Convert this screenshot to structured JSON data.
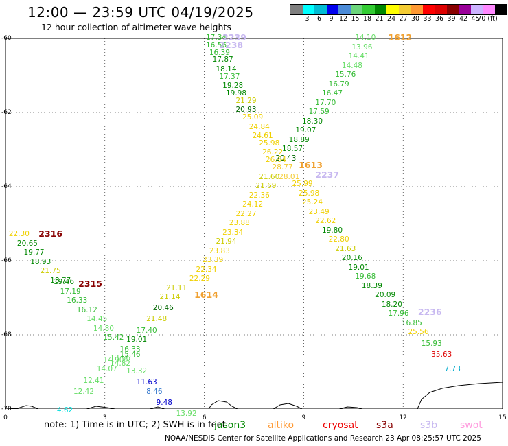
{
  "title": "12:00 — 23:59 UTC 04/19/2025",
  "subtitle": "12 hour collection of altimeter wave heights",
  "legend": {
    "colors": [
      "#7f7f7f",
      "#00ffff",
      "#00bcd4",
      "#0000ee",
      "#4b8bd8",
      "#6cd67c",
      "#33cc33",
      "#008800",
      "#ffff00",
      "#f4cc33",
      "#ff9933",
      "#ff0000",
      "#dd0000",
      "#880000",
      "#990099",
      "#ccb3ff",
      "#ff88ff",
      "#000000"
    ],
    "labels": [
      "3",
      "6",
      "9",
      "12",
      "15",
      "18",
      "21",
      "24",
      "27",
      "30",
      "33",
      "36",
      "39",
      "42",
      "45",
      "70 (ft)"
    ]
  },
  "axes": {
    "lat_labels": [
      "-60",
      "-62",
      "-64",
      "-66",
      "-68",
      "-70"
    ],
    "lon_labels": [
      "0",
      "3",
      "6",
      "9",
      "12",
      "15"
    ]
  },
  "points": [
    {
      "v": "17.34",
      "lon": 6.05,
      "lat": -60.0,
      "c": "#33bb33"
    },
    {
      "v": "16.56",
      "lon": 6.05,
      "lat": -60.2,
      "c": "#33bb33"
    },
    {
      "v": "16.39",
      "lon": 6.15,
      "lat": -60.4,
      "c": "#33bb33"
    },
    {
      "v": "17.87",
      "lon": 6.25,
      "lat": -60.6,
      "c": "#008800"
    },
    {
      "v": "18.14",
      "lon": 6.35,
      "lat": -60.85,
      "c": "#008800"
    },
    {
      "v": "17.37",
      "lon": 6.45,
      "lat": -61.05,
      "c": "#33bb33"
    },
    {
      "v": "19.28",
      "lon": 6.55,
      "lat": -61.3,
      "c": "#008800"
    },
    {
      "v": "19.98",
      "lon": 6.65,
      "lat": -61.5,
      "c": "#008800"
    },
    {
      "v": "21.29",
      "lon": 6.95,
      "lat": -61.7,
      "c": "#cccc00"
    },
    {
      "v": "20.93",
      "lon": 6.95,
      "lat": -61.95,
      "c": "#006600"
    },
    {
      "v": "25.09",
      "lon": 7.15,
      "lat": -62.15,
      "c": "#f0d000"
    },
    {
      "v": "24.84",
      "lon": 7.35,
      "lat": -62.4,
      "c": "#f0d000"
    },
    {
      "v": "24.61",
      "lon": 7.45,
      "lat": -62.65,
      "c": "#f0d000"
    },
    {
      "v": "25.98",
      "lon": 7.65,
      "lat": -62.85,
      "c": "#f0d000"
    },
    {
      "v": "26.22",
      "lon": 7.75,
      "lat": -63.1,
      "c": "#f0d000"
    },
    {
      "v": "26.64",
      "lon": 7.85,
      "lat": -63.3,
      "c": "#f0d000"
    },
    {
      "v": "28.77",
      "lon": 8.05,
      "lat": -63.5,
      "c": "#f4cc33"
    },
    {
      "v": "28.01",
      "lon": 8.25,
      "lat": -63.75,
      "c": "#f4cc33"
    },
    {
      "v": "25.99",
      "lon": 8.65,
      "lat": -63.95,
      "c": "#f0d000"
    },
    {
      "v": "25.98",
      "lon": 8.85,
      "lat": -64.2,
      "c": "#f0d000"
    },
    {
      "v": "25.24",
      "lon": 8.95,
      "lat": -64.45,
      "c": "#f0d000"
    },
    {
      "v": "23.49",
      "lon": 9.15,
      "lat": -64.7,
      "c": "#f0d000"
    },
    {
      "v": "22.62",
      "lon": 9.35,
      "lat": -64.95,
      "c": "#f0d000"
    },
    {
      "v": "19.80",
      "lon": 9.55,
      "lat": -65.2,
      "c": "#008800"
    },
    {
      "v": "22.80",
      "lon": 9.75,
      "lat": -65.45,
      "c": "#f0d000"
    },
    {
      "v": "21.63",
      "lon": 9.95,
      "lat": -65.7,
      "c": "#cccc00"
    },
    {
      "v": "20.16",
      "lon": 10.15,
      "lat": -65.95,
      "c": "#008800"
    },
    {
      "v": "19.01",
      "lon": 10.35,
      "lat": -66.2,
      "c": "#008800"
    },
    {
      "v": "19.68",
      "lon": 10.55,
      "lat": -66.45,
      "c": "#33bb33"
    },
    {
      "v": "18.39",
      "lon": 10.75,
      "lat": -66.7,
      "c": "#008800"
    },
    {
      "v": "20.09",
      "lon": 11.15,
      "lat": -66.95,
      "c": "#008800"
    },
    {
      "v": "18.20",
      "lon": 11.35,
      "lat": -67.2,
      "c": "#008800"
    },
    {
      "v": "17.96",
      "lon": 11.55,
      "lat": -67.45,
      "c": "#33bb33"
    },
    {
      "v": "16.85",
      "lon": 11.95,
      "lat": -67.7,
      "c": "#33bb33"
    },
    {
      "v": "25.56",
      "lon": 12.15,
      "lat": -67.95,
      "c": "#f0d000"
    },
    {
      "v": "15.93",
      "lon": 12.55,
      "lat": -68.25,
      "c": "#33bb33"
    },
    {
      "v": "35.63",
      "lon": 12.85,
      "lat": -68.55,
      "c": "#dd0000"
    },
    {
      "v": "7.73",
      "lon": 13.25,
      "lat": -68.95,
      "c": "#00aacc"
    },
    {
      "v": "14.10",
      "lon": 10.55,
      "lat": -60.0,
      "c": "#66dd66"
    },
    {
      "v": "13.96",
      "lon": 10.45,
      "lat": -60.25,
      "c": "#66dd66"
    },
    {
      "v": "14.41",
      "lon": 10.35,
      "lat": -60.5,
      "c": "#66dd66"
    },
    {
      "v": "14.48",
      "lon": 10.15,
      "lat": -60.75,
      "c": "#66dd66"
    },
    {
      "v": "15.76",
      "lon": 9.95,
      "lat": -61.0,
      "c": "#33bb33"
    },
    {
      "v": "16.79",
      "lon": 9.75,
      "lat": -61.25,
      "c": "#33bb33"
    },
    {
      "v": "16.47",
      "lon": 9.55,
      "lat": -61.5,
      "c": "#33bb33"
    },
    {
      "v": "17.70",
      "lon": 9.35,
      "lat": -61.75,
      "c": "#33bb33"
    },
    {
      "v": "17.59",
      "lon": 9.15,
      "lat": -62.0,
      "c": "#33bb33"
    },
    {
      "v": "18.30",
      "lon": 8.95,
      "lat": -62.25,
      "c": "#008800"
    },
    {
      "v": "19.07",
      "lon": 8.75,
      "lat": -62.5,
      "c": "#008800"
    },
    {
      "v": "18.89",
      "lon": 8.55,
      "lat": -62.75,
      "c": "#008800"
    },
    {
      "v": "18.57",
      "lon": 8.35,
      "lat": -63.0,
      "c": "#008800"
    },
    {
      "v": "20.43",
      "lon": 8.15,
      "lat": -63.25,
      "c": "#006600"
    },
    {
      "v": "21.60",
      "lon": 7.65,
      "lat": -63.75,
      "c": "#cccc00"
    },
    {
      "v": "21.69",
      "lon": 7.55,
      "lat": -64.0,
      "c": "#cccc00"
    },
    {
      "v": "22.36",
      "lon": 7.35,
      "lat": -64.25,
      "c": "#f0d000"
    },
    {
      "v": "24.12",
      "lon": 7.15,
      "lat": -64.5,
      "c": "#f0d000"
    },
    {
      "v": "22.27",
      "lon": 6.95,
      "lat": -64.75,
      "c": "#f0d000"
    },
    {
      "v": "23.88",
      "lon": 6.75,
      "lat": -65.0,
      "c": "#f0d000"
    },
    {
      "v": "23.34",
      "lon": 6.55,
      "lat": -65.25,
      "c": "#f0d000"
    },
    {
      "v": "21.94",
      "lon": 6.35,
      "lat": -65.5,
      "c": "#cccc00"
    },
    {
      "v": "23.83",
      "lon": 6.15,
      "lat": -65.75,
      "c": "#f0d000"
    },
    {
      "v": "23.39",
      "lon": 5.95,
      "lat": -66.0,
      "c": "#f0d000"
    },
    {
      "v": "22.34",
      "lon": 5.75,
      "lat": -66.25,
      "c": "#f0d000"
    },
    {
      "v": "22.29",
      "lon": 5.55,
      "lat": -66.5,
      "c": "#f0d000"
    },
    {
      "v": "21.11",
      "lon": 4.85,
      "lat": -66.75,
      "c": "#cccc00"
    },
    {
      "v": "21.14",
      "lon": 4.65,
      "lat": -67.0,
      "c": "#cccc00"
    },
    {
      "v": "20.46",
      "lon": 4.45,
      "lat": -67.3,
      "c": "#006600"
    },
    {
      "v": "21.48",
      "lon": 4.25,
      "lat": -67.6,
      "c": "#cccc00"
    },
    {
      "v": "17.40",
      "lon": 3.95,
      "lat": -67.9,
      "c": "#33bb33"
    },
    {
      "v": "19.01",
      "lon": 3.65,
      "lat": -68.15,
      "c": "#008800"
    },
    {
      "v": "16.33",
      "lon": 3.45,
      "lat": -68.4,
      "c": "#33bb33"
    },
    {
      "v": "13.56",
      "lon": 3.15,
      "lat": -68.65,
      "c": "#66dd66"
    },
    {
      "v": "15.46",
      "lon": 3.45,
      "lat": -68.55,
      "c": "#33bb33"
    },
    {
      "v": "14.82",
      "lon": 3.15,
      "lat": -68.8,
      "c": "#66dd66"
    },
    {
      "v": "13.32",
      "lon": 3.65,
      "lat": -69.0,
      "c": "#66dd66"
    },
    {
      "v": "11.63",
      "lon": 3.95,
      "lat": -69.3,
      "c": "#0000cc"
    },
    {
      "v": "8.46",
      "lon": 4.25,
      "lat": -69.55,
      "c": "#3377cc"
    },
    {
      "v": "9.48",
      "lon": 4.55,
      "lat": -69.85,
      "c": "#0000cc"
    },
    {
      "v": "22.30",
      "lon": 0.1,
      "lat": -65.3,
      "c": "#f0d000"
    },
    {
      "v": "20.65",
      "lon": 0.35,
      "lat": -65.55,
      "c": "#008800"
    },
    {
      "v": "19.77",
      "lon": 0.55,
      "lat": -65.8,
      "c": "#008800"
    },
    {
      "v": "18.93",
      "lon": 0.75,
      "lat": -66.05,
      "c": "#008800"
    },
    {
      "v": "21.75",
      "lon": 1.05,
      "lat": -66.3,
      "c": "#cccc00"
    },
    {
      "v": "18.77",
      "lon": 1.35,
      "lat": -66.55,
      "c": "#008800"
    },
    {
      "v": "19.46",
      "lon": 1.45,
      "lat": -66.6,
      "c": "#008800"
    },
    {
      "v": "17.19",
      "lon": 1.65,
      "lat": -66.85,
      "c": "#33bb33"
    },
    {
      "v": "16.33",
      "lon": 1.85,
      "lat": -67.1,
      "c": "#33bb33"
    },
    {
      "v": "16.12",
      "lon": 2.15,
      "lat": -67.35,
      "c": "#33bb33"
    },
    {
      "v": "14.45",
      "lon": 2.45,
      "lat": -67.6,
      "c": "#66dd66"
    },
    {
      "v": "14.80",
      "lon": 2.65,
      "lat": -67.85,
      "c": "#66dd66"
    },
    {
      "v": "15.42",
      "lon": 2.95,
      "lat": -68.1,
      "c": "#33bb33"
    },
    {
      "v": "14.90",
      "lon": 2.95,
      "lat": -68.7,
      "c": "#66dd66"
    },
    {
      "v": "14.07",
      "lon": 2.75,
      "lat": -68.95,
      "c": "#66dd66"
    },
    {
      "v": "12.41",
      "lon": 2.35,
      "lat": -69.25,
      "c": "#66dd66"
    },
    {
      "v": "12.42",
      "lon": 2.05,
      "lat": -69.55,
      "c": "#66dd66"
    },
    {
      "v": "4.62",
      "lon": 1.55,
      "lat": -70.05,
      "c": "#00dddd"
    },
    {
      "v": "13.92",
      "lon": 5.15,
      "lat": -70.15,
      "c": "#66dd66"
    }
  ],
  "pass_labels": [
    {
      "v": "2239",
      "lon": 6.55,
      "lat": -60.0,
      "c": "#c7b8f0"
    },
    {
      "v": "2238",
      "lon": 6.45,
      "lat": -60.2,
      "c": "#c7b8f0"
    },
    {
      "v": "1612",
      "lon": 11.55,
      "lat": -60.0,
      "c": "#f0a030"
    },
    {
      "v": "1613",
      "lon": 8.85,
      "lat": -63.45,
      "c": "#f0a030"
    },
    {
      "v": "2237",
      "lon": 9.35,
      "lat": -63.7,
      "c": "#c7b8f0"
    },
    {
      "v": "2316",
      "lon": 1.0,
      "lat": -65.3,
      "c": "#880000"
    },
    {
      "v": "2315",
      "lon": 2.2,
      "lat": -66.65,
      "c": "#880000"
    },
    {
      "v": "1614",
      "lon": 5.7,
      "lat": -66.95,
      "c": "#f0a030"
    },
    {
      "v": "2236",
      "lon": 12.45,
      "lat": -67.4,
      "c": "#c7b8f0"
    }
  ],
  "note": "note:  1) Time is in UTC; 2) SWH is in feet",
  "satellites": [
    {
      "name": "jason3",
      "c": "#008800"
    },
    {
      "name": "altiko",
      "c": "#ff9933"
    },
    {
      "name": "cryosat",
      "c": "#ee0000"
    },
    {
      "name": "s3a",
      "c": "#880000"
    },
    {
      "name": "s3b",
      "c": "#c7b8f0"
    },
    {
      "name": "swot",
      "c": "#ff99dd"
    }
  ],
  "footer": "NOAA/NESDIS Center for Satellite Applications and Research    23 Apr 08:25:57 UTC 2025"
}
